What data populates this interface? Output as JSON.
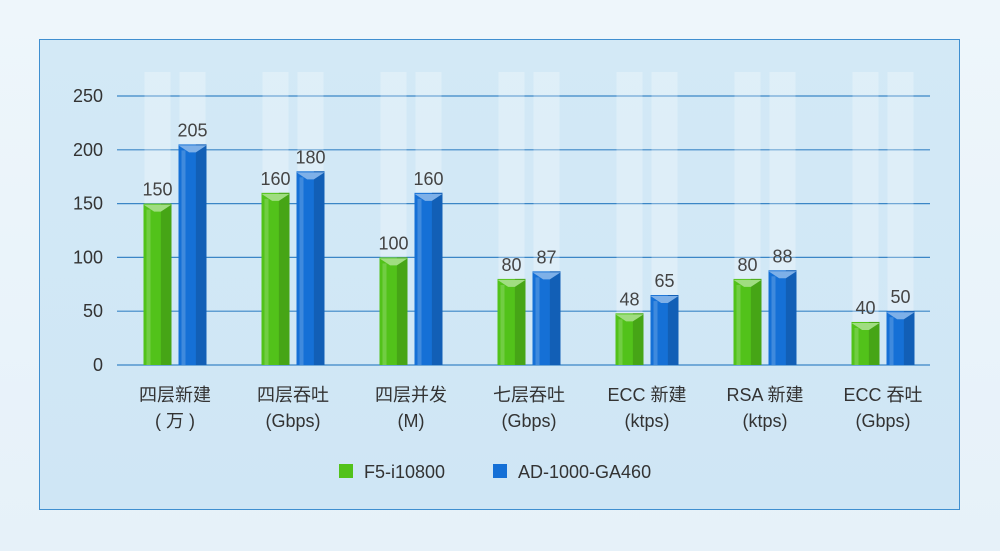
{
  "chart_data": {
    "type": "bar",
    "categories": [
      [
        "四层新建",
        "( 万 )"
      ],
      [
        "四层吞吐",
        "(Gbps)"
      ],
      [
        "四层并发",
        "(M)"
      ],
      [
        "七层吞吐",
        "(Gbps)"
      ],
      [
        "ECC 新建",
        "(ktps)"
      ],
      [
        "RSA 新建",
        "(ktps)"
      ],
      [
        "ECC 吞吐",
        "(Gbps)"
      ]
    ],
    "series": [
      {
        "name": "F5-i10800",
        "values": [
          150,
          160,
          100,
          80,
          48,
          80,
          40
        ],
        "color": "#52c21a"
      },
      {
        "name": "AD-1000-GA460",
        "values": [
          205,
          180,
          160,
          87,
          65,
          88,
          50
        ],
        "color": "#1570d6"
      }
    ],
    "yticks": [
      0,
      50,
      100,
      150,
      200,
      250
    ],
    "ylim": [
      0,
      250
    ],
    "grid": true,
    "legend": "bottom",
    "title": "",
    "xlabel": "",
    "ylabel": ""
  }
}
